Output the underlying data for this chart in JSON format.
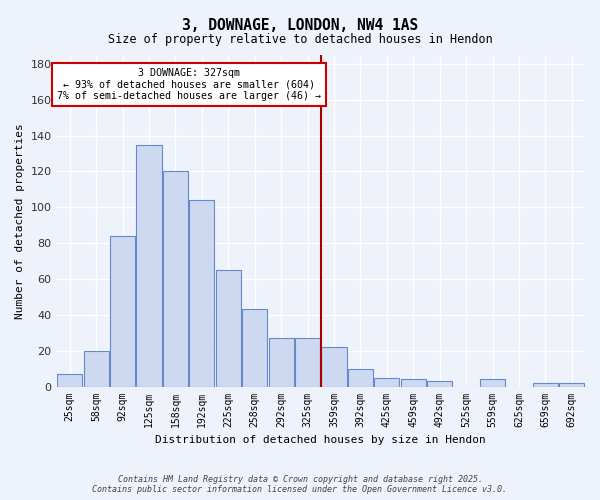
{
  "title": "3, DOWNAGE, LONDON, NW4 1AS",
  "subtitle": "Size of property relative to detached houses in Hendon",
  "xlabel": "Distribution of detached houses by size in Hendon",
  "ylabel": "Number of detached properties",
  "bar_color": "#ccd9f0",
  "bar_edge_color": "#6688cc",
  "background_color": "#eef2fa",
  "grid_color": "#ffffff",
  "vline_x": 9.5,
  "vline_color": "#aa0000",
  "annotation_title": "3 DOWNAGE: 327sqm",
  "annotation_line1": "← 93% of detached houses are smaller (604)",
  "annotation_line2": "7% of semi-detached houses are larger (46) →",
  "annotation_box_color": "#cc0000",
  "bin_labels": [
    "25sqm",
    "58sqm",
    "92sqm",
    "125sqm",
    "158sqm",
    "192sqm",
    "225sqm",
    "258sqm",
    "292sqm",
    "325sqm",
    "359sqm",
    "392sqm",
    "425sqm",
    "459sqm",
    "492sqm",
    "525sqm",
    "559sqm",
    "625sqm",
    "659sqm",
    "692sqm"
  ],
  "values": [
    7,
    20,
    84,
    135,
    120,
    104,
    65,
    43,
    27,
    27,
    22,
    10,
    5,
    4,
    3,
    0,
    4,
    0,
    2,
    2
  ],
  "ylim": [
    0,
    185
  ],
  "yticks": [
    0,
    20,
    40,
    60,
    80,
    100,
    120,
    140,
    160,
    180
  ],
  "footer_line1": "Contains HM Land Registry data © Crown copyright and database right 2025.",
  "footer_line2": "Contains public sector information licensed under the Open Government Licence v3.0."
}
